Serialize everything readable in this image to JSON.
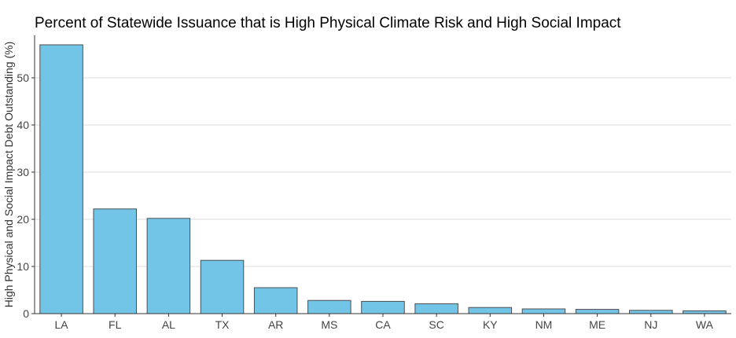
{
  "chart_data": {
    "type": "bar",
    "title": "Percent of Statewide Issuance that is High Physical Climate Risk and High Social Impact",
    "xlabel": "",
    "ylabel": "High Physical and Social Impact Debt Outstanding (%)",
    "categories": [
      "LA",
      "FL",
      "AL",
      "TX",
      "AR",
      "MS",
      "CA",
      "SC",
      "KY",
      "NM",
      "ME",
      "NJ",
      "WA"
    ],
    "values": [
      57.0,
      22.2,
      20.2,
      11.3,
      5.5,
      2.8,
      2.6,
      2.1,
      1.3,
      1.0,
      0.9,
      0.7,
      0.6
    ],
    "ylim": [
      0,
      59
    ],
    "yticks": [
      0,
      10,
      20,
      30,
      40,
      50
    ],
    "grid": true,
    "bar_color": "#73c5e8",
    "bar_border_color": "#4d4d4d"
  }
}
